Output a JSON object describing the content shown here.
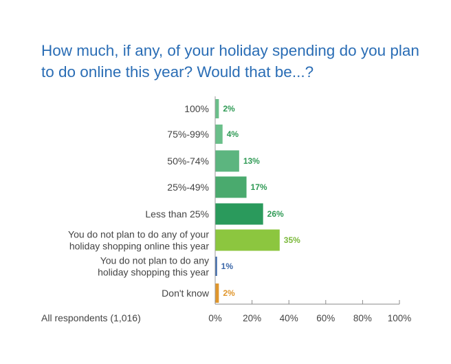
{
  "title": "How much, if any, of your holiday spending do you plan to do online this year? Would that be...?",
  "note": "All respondents (1,016)",
  "chart_data": {
    "type": "bar",
    "orientation": "horizontal",
    "title": "How much, if any, of your holiday spending do you plan to do online this year? Would that be...?",
    "categories": [
      [
        "100%"
      ],
      [
        "75%-99%"
      ],
      [
        "50%-74%"
      ],
      [
        "25%-49%"
      ],
      [
        "Less than 25%"
      ],
      [
        "You do not plan to do any of your",
        "holiday shopping online this year"
      ],
      [
        "You do not plan to do any",
        "holiday shopping this year"
      ],
      [
        "Don't know"
      ]
    ],
    "values": [
      2,
      4,
      13,
      17,
      26,
      35,
      1,
      2
    ],
    "value_labels": [
      "2%",
      "4%",
      "13%",
      "17%",
      "26%",
      "35%",
      "1%",
      "2%"
    ],
    "colors": [
      "#6abf8a",
      "#6abf8a",
      "#5cb57f",
      "#4aaa6e",
      "#2a9a5c",
      "#8cc63f",
      "#3a66a8",
      "#e0962c"
    ],
    "label_colors": [
      "#2f9a55",
      "#2f9a55",
      "#2f9a55",
      "#2f9a55",
      "#2f9a55",
      "#7ab83a",
      "#3a66a8",
      "#e0962c"
    ],
    "xlim": [
      0,
      100
    ],
    "xticks": [
      "0%",
      "20%",
      "40%",
      "60%",
      "80%",
      "100%"
    ],
    "xtick_values": [
      0,
      20,
      40,
      60,
      80,
      100
    ],
    "grid": false
  }
}
